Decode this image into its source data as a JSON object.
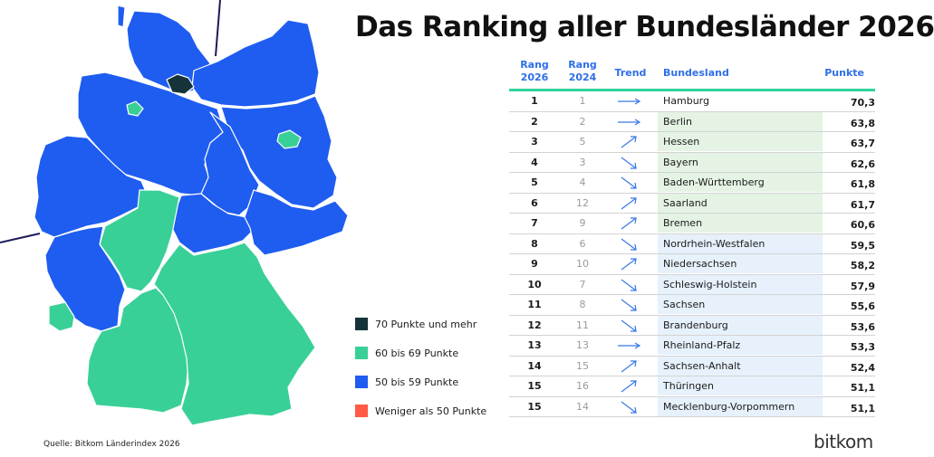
{
  "title": "Das Ranking aller Bundesländer 2026",
  "colors": {
    "cat_70_plus": "#17333a",
    "cat_60_69": "#39d098",
    "cat_50_59": "#1f5df0",
    "cat_below_50": "#ff5a45",
    "header_text": "#2e6ee8",
    "header_rule": "#2fd39a",
    "band_green": "#e4f3e3",
    "band_blue": "#e6f1fb",
    "arrow": "#3a78e8"
  },
  "table": {
    "headers": {
      "rank_2026": "Rang\n2026",
      "rank_2024": "Rang\n2024",
      "trend": "Trend",
      "state": "Bundesland",
      "points": "Punkte"
    },
    "rows": [
      {
        "rank_2026": "1",
        "rank_2024": "1",
        "trend": "flat",
        "state": "Hamburg",
        "points": "70,3",
        "category": "cat_70_plus"
      },
      {
        "rank_2026": "2",
        "rank_2024": "2",
        "trend": "flat",
        "state": "Berlin",
        "points": "63,8",
        "category": "cat_60_69"
      },
      {
        "rank_2026": "3",
        "rank_2024": "5",
        "trend": "up",
        "state": "Hessen",
        "points": "63,7",
        "category": "cat_60_69"
      },
      {
        "rank_2026": "4",
        "rank_2024": "3",
        "trend": "down",
        "state": "Bayern",
        "points": "62,6",
        "category": "cat_60_69"
      },
      {
        "rank_2026": "5",
        "rank_2024": "4",
        "trend": "down",
        "state": "Baden-Württemberg",
        "points": "61,8",
        "category": "cat_60_69"
      },
      {
        "rank_2026": "6",
        "rank_2024": "12",
        "trend": "up",
        "state": "Saarland",
        "points": "61,7",
        "category": "cat_60_69"
      },
      {
        "rank_2026": "7",
        "rank_2024": "9",
        "trend": "up",
        "state": "Bremen",
        "points": "60,6",
        "category": "cat_60_69"
      },
      {
        "rank_2026": "8",
        "rank_2024": "6",
        "trend": "down",
        "state": "Nordrhein-Westfalen",
        "points": "59,5",
        "category": "cat_50_59"
      },
      {
        "rank_2026": "9",
        "rank_2024": "10",
        "trend": "up",
        "state": "Niedersachsen",
        "points": "58,2",
        "category": "cat_50_59"
      },
      {
        "rank_2026": "10",
        "rank_2024": "7",
        "trend": "down",
        "state": "Schleswig-Holstein",
        "points": "57,9",
        "category": "cat_50_59"
      },
      {
        "rank_2026": "11",
        "rank_2024": "8",
        "trend": "down",
        "state": "Sachsen",
        "points": "55,6",
        "category": "cat_50_59"
      },
      {
        "rank_2026": "12",
        "rank_2024": "11",
        "trend": "down",
        "state": "Brandenburg",
        "points": "53,6",
        "category": "cat_50_59"
      },
      {
        "rank_2026": "13",
        "rank_2024": "13",
        "trend": "flat",
        "state": "Rheinland-Pfalz",
        "points": "53,3",
        "category": "cat_50_59"
      },
      {
        "rank_2026": "14",
        "rank_2024": "15",
        "trend": "up",
        "state": "Sachsen-Anhalt",
        "points": "52,4",
        "category": "cat_50_59"
      },
      {
        "rank_2026": "15",
        "rank_2024": "16",
        "trend": "up",
        "state": "Thüringen",
        "points": "51,1",
        "category": "cat_50_59"
      },
      {
        "rank_2026": "15",
        "rank_2024": "14",
        "trend": "down",
        "state": "Mecklenburg-Vorpommern",
        "points": "51,1",
        "category": "cat_50_59"
      }
    ]
  },
  "legend": [
    {
      "label": "70 Punkte und mehr",
      "category": "cat_70_plus"
    },
    {
      "label": "60 bis 69 Punkte",
      "category": "cat_60_69"
    },
    {
      "label": "50 bis 59 Punkte",
      "category": "cat_50_59"
    },
    {
      "label": "Weniger als 50 Punkte",
      "category": "cat_below_50"
    }
  ],
  "map_fills": {
    "Schleswig-Holstein": "cat_50_59",
    "Hamburg": "cat_70_plus",
    "Mecklenburg-Vorpommern": "cat_50_59",
    "Bremen": "cat_60_69",
    "Berlin": "cat_60_69",
    "Niedersachsen": "cat_50_59",
    "Brandenburg": "cat_50_59",
    "Sachsen-Anhalt": "cat_50_59",
    "Nordrhein-Westfalen": "cat_50_59",
    "Thüringen": "cat_50_59",
    "Sachsen": "cat_50_59",
    "Hessen": "cat_60_69",
    "Rheinland-Pfalz": "cat_50_59",
    "Saarland": "cat_60_69",
    "Bayern": "cat_60_69",
    "Baden-Württemberg": "cat_60_69"
  },
  "source": "Quelle: Bitkom Länderindex 2026",
  "brand": "bitkom"
}
